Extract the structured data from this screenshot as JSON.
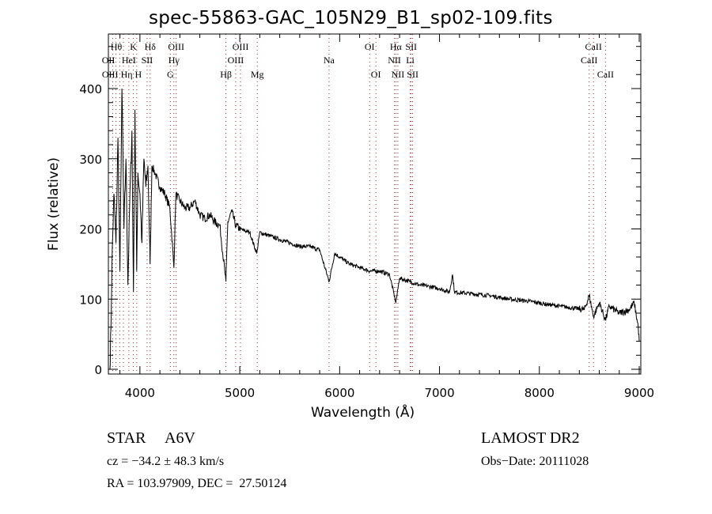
{
  "chart_data": {
    "type": "line",
    "title": "spec-55863-GAC_105N29_B1_sp02-109.fits",
    "xlabel": "Wavelength (Å)",
    "ylabel": "Flux (relative)",
    "xlim": [
      3700,
      9050
    ],
    "ylim": [
      -5,
      480
    ],
    "xticks": [
      4000,
      5000,
      6000,
      7000,
      8000,
      9000
    ],
    "yticks": [
      0,
      100,
      200,
      300,
      400
    ],
    "grid": false,
    "series": [
      {
        "name": "spectrum",
        "color": "#000000",
        "x": [
          3700,
          3710,
          3720,
          3740,
          3760,
          3780,
          3800,
          3820,
          3840,
          3860,
          3880,
          3900,
          3920,
          3935,
          3950,
          3968,
          3980,
          4000,
          4020,
          4040,
          4060,
          4080,
          4102,
          4120,
          4150,
          4200,
          4250,
          4300,
          4340,
          4360,
          4400,
          4450,
          4500,
          4550,
          4600,
          4650,
          4700,
          4750,
          4800,
          4861,
          4880,
          4920,
          4960,
          5000,
          5100,
          5170,
          5200,
          5300,
          5400,
          5500,
          5600,
          5700,
          5800,
          5894,
          5950,
          6000,
          6100,
          6200,
          6300,
          6400,
          6500,
          6563,
          6600,
          6700,
          6800,
          6900,
          7000,
          7100,
          7130,
          7150,
          7300,
          7500,
          7700,
          7900,
          8100,
          8300,
          8450,
          8500,
          8542,
          8600,
          8662,
          8700,
          8800,
          8900,
          8950,
          8990,
          9000
        ],
        "y": [
          0,
          60,
          150,
          250,
          180,
          330,
          140,
          400,
          200,
          300,
          120,
          250,
          340,
          110,
          370,
          140,
          280,
          250,
          180,
          300,
          260,
          290,
          150,
          290,
          280,
          260,
          250,
          230,
          145,
          250,
          240,
          230,
          230,
          240,
          220,
          215,
          220,
          210,
          205,
          125,
          210,
          225,
          205,
          200,
          195,
          165,
          195,
          190,
          185,
          180,
          175,
          175,
          170,
          125,
          165,
          160,
          150,
          145,
          140,
          140,
          135,
          95,
          130,
          125,
          120,
          118,
          115,
          110,
          135,
          110,
          108,
          105,
          100,
          97,
          92,
          88,
          85,
          105,
          75,
          95,
          70,
          90,
          80,
          85,
          95,
          60,
          40
        ]
      }
    ],
    "lines": [
      {
        "label": "OII",
        "wave": 3727,
        "row": 2
      },
      {
        "label": "Hθ",
        "wave": 3798,
        "row": 1
      },
      {
        "label": "OIII",
        "wave": 3760,
        "row": 3
      },
      {
        "label": "Hη",
        "wave": 3835,
        "row": 3
      },
      {
        "label": "HeI",
        "wave": 3889,
        "row": 2
      },
      {
        "label": "K",
        "wave": 3934,
        "row": 1
      },
      {
        "label": "H",
        "wave": 3968,
        "row": 3
      },
      {
        "label": "SII",
        "wave": 4072,
        "row": 2
      },
      {
        "label": "Hδ",
        "wave": 4102,
        "row": 1
      },
      {
        "label": "G",
        "wave": 4305,
        "row": 3
      },
      {
        "label": "Hγ",
        "wave": 4340,
        "row": 2
      },
      {
        "label": "OIII",
        "wave": 4363,
        "row": 1
      },
      {
        "label": "Hβ",
        "wave": 4861,
        "row": 3
      },
      {
        "label": "OIII",
        "wave": 4959,
        "row": 2
      },
      {
        "label": "OIII",
        "wave": 5007,
        "row": 1
      },
      {
        "label": "Mg",
        "wave": 5175,
        "row": 3
      },
      {
        "label": "Na",
        "wave": 5894,
        "row": 2
      },
      {
        "label": "OI",
        "wave": 6300,
        "row": 1
      },
      {
        "label": "OI",
        "wave": 6363,
        "row": 3
      },
      {
        "label": "NII",
        "wave": 6548,
        "row": 2
      },
      {
        "label": "Hα",
        "wave": 6563,
        "row": 1
      },
      {
        "label": "NII",
        "wave": 6583,
        "row": 3
      },
      {
        "label": "Li",
        "wave": 6707,
        "row": 2
      },
      {
        "label": "SII",
        "wave": 6716,
        "row": 1
      },
      {
        "label": "SII",
        "wave": 6731,
        "row": 3
      },
      {
        "label": "CaII",
        "wave": 8498,
        "row": 2
      },
      {
        "label": "CaII",
        "wave": 8542,
        "row": 1
      },
      {
        "label": "CaII",
        "wave": 8662,
        "row": 3
      }
    ],
    "line_color": "#8b2a2a"
  },
  "info": {
    "object_class": "STAR",
    "subclass": "A6V",
    "redshift": "cz = −34.2 ± 48.3 km/s",
    "coords": "RA = 103.97909, DEC =  27.50124",
    "survey": "LAMOST DR2",
    "obs_date": "Obs−Date: 20111028"
  }
}
